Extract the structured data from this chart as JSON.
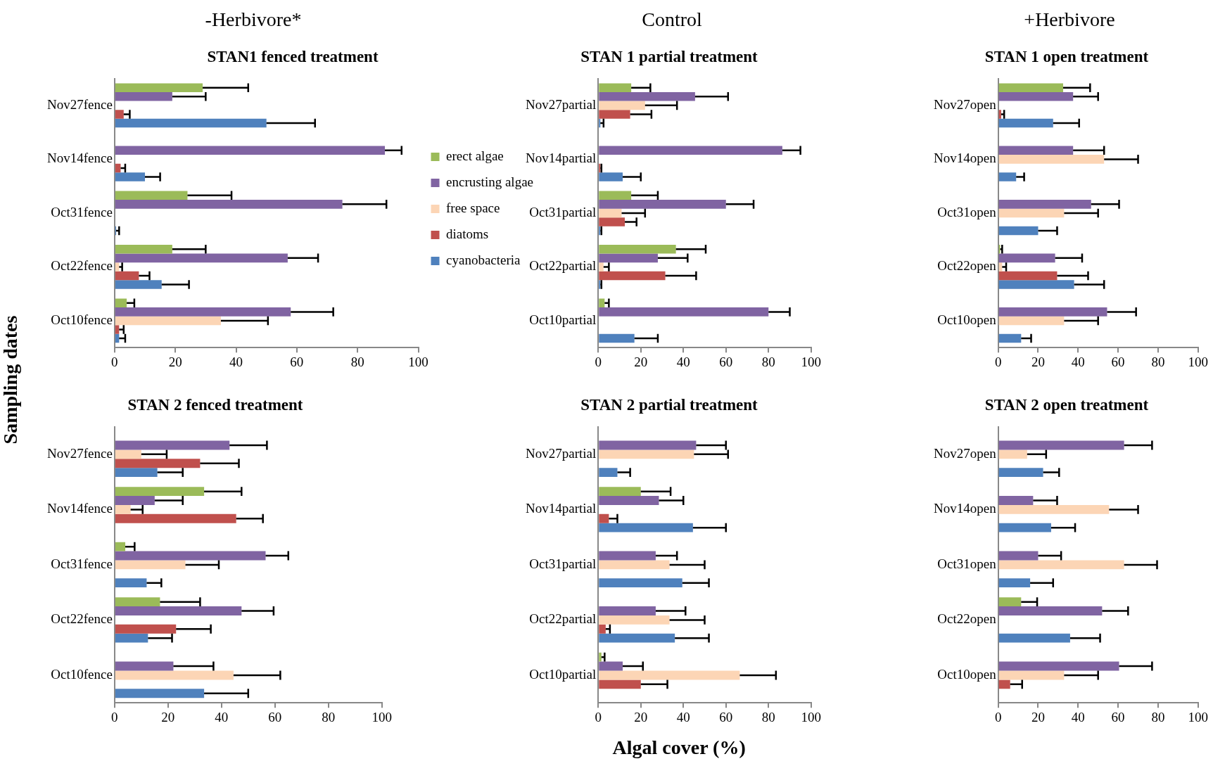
{
  "chart_data": [
    {
      "type": "bar",
      "orientation": "horizontal",
      "subtitle": "-Herbivore*",
      "title": "STAN1 fenced treatment",
      "ylabel": "Sampling dates",
      "legend": "right",
      "grid": false,
      "categories": [
        "Nov27fence",
        "Nov14fence",
        "Oct31fence",
        "Oct22fence",
        "Oct10fence"
      ],
      "xlim": [
        0,
        100
      ],
      "xticks": [
        0,
        20,
        40,
        60,
        80,
        100
      ],
      "series": [
        {
          "name": "erect algae",
          "color": "#9bbb59",
          "values": [
            29,
            null,
            24,
            19,
            4
          ],
          "errors": [
            [
              29,
              44
            ],
            null,
            [
              24,
              38.5
            ],
            [
              19,
              30
            ],
            [
              4,
              6.5
            ]
          ]
        },
        {
          "name": "encrusting algae",
          "color": "#8064a2",
          "values": [
            19,
            89,
            75,
            57,
            58
          ],
          "errors": [
            [
              19,
              30
            ],
            [
              89,
              94.5
            ],
            [
              75,
              89.5
            ],
            [
              57,
              67
            ],
            [
              58,
              72
            ]
          ]
        },
        {
          "name": "free space",
          "color": "#fcd5b5",
          "values": [
            null,
            null,
            null,
            1.5,
            35
          ],
          "errors": [
            null,
            null,
            null,
            [
              1.5,
              2.5
            ],
            [
              35,
              50.5
            ]
          ]
        },
        {
          "name": "diatoms",
          "color": "#c0504d",
          "values": [
            3,
            2,
            null,
            8,
            1.5
          ],
          "errors": [
            [
              3,
              5
            ],
            [
              2,
              3.5
            ],
            null,
            [
              8,
              11.5
            ],
            [
              1.5,
              3
            ]
          ]
        },
        {
          "name": "cyanobacteria",
          "color": "#4f81bd",
          "values": [
            50,
            10,
            0.5,
            15.5,
            1.5
          ],
          "errors": [
            [
              50,
              66
            ],
            [
              10,
              15
            ],
            [
              0.5,
              1.5
            ],
            [
              15.5,
              24.5
            ],
            [
              1.5,
              3.5
            ]
          ]
        }
      ]
    },
    {
      "type": "bar",
      "orientation": "horizontal",
      "subtitle": "Control",
      "title": "STAN 1 partial treatment",
      "legend": false,
      "grid": false,
      "categories": [
        "Nov27partial",
        "Nov14partial",
        "Oct31partial",
        "Oct22partial",
        "Oct10partial"
      ],
      "xlim": [
        0,
        100
      ],
      "xticks": [
        0,
        20,
        40,
        60,
        80,
        100
      ],
      "series": [
        {
          "color": "#9bbb59",
          "values": [
            15.5,
            null,
            15.5,
            36.5,
            3
          ],
          "errors": [
            [
              15.5,
              24.5
            ],
            null,
            [
              15.5,
              28
            ],
            [
              36.5,
              50.5
            ],
            [
              3,
              5
            ]
          ]
        },
        {
          "color": "#8064a2",
          "values": [
            45.5,
            86.5,
            60,
            28,
            80
          ],
          "errors": [
            [
              45.5,
              61
            ],
            [
              86.5,
              95
            ],
            [
              60,
              73
            ],
            [
              28,
              42
            ],
            [
              80,
              90
            ]
          ]
        },
        {
          "color": "#fcd5b5",
          "values": [
            22,
            null,
            11,
            2.5,
            null
          ],
          "errors": [
            [
              22,
              37
            ],
            null,
            [
              11,
              22
            ],
            [
              2.5,
              5
            ],
            null
          ]
        },
        {
          "color": "#c0504d",
          "values": [
            15,
            1,
            12.5,
            31.5,
            null
          ],
          "errors": [
            [
              15,
              25
            ],
            [
              1,
              1.5
            ],
            [
              12.5,
              18
            ],
            [
              31.5,
              46
            ],
            null
          ]
        },
        {
          "color": "#4f81bd",
          "values": [
            1,
            11.5,
            1,
            1,
            17
          ],
          "errors": [
            [
              1,
              2.5
            ],
            [
              11.5,
              20
            ],
            [
              1,
              1.5
            ],
            [
              1,
              1.5
            ],
            [
              17,
              28
            ]
          ]
        }
      ]
    },
    {
      "type": "bar",
      "orientation": "horizontal",
      "subtitle": "+Herbivore",
      "title": "STAN 1 open treatment",
      "legend": false,
      "grid": false,
      "categories": [
        "Nov27open",
        "Nov14open",
        "Oct31open",
        "Oct22open",
        "Oct10open"
      ],
      "xlim": [
        0,
        100
      ],
      "xticks": [
        0,
        20,
        40,
        60,
        80,
        100
      ],
      "series": [
        {
          "color": "#9bbb59",
          "values": [
            32.5,
            null,
            null,
            1,
            null
          ],
          "errors": [
            [
              32.5,
              46
            ],
            null,
            null,
            [
              1,
              2
            ],
            null
          ]
        },
        {
          "color": "#8064a2",
          "values": [
            37.5,
            37.5,
            46.5,
            28.5,
            54.5
          ],
          "errors": [
            [
              37.5,
              50
            ],
            [
              37.5,
              53
            ],
            [
              46.5,
              60.5
            ],
            [
              28.5,
              42
            ],
            [
              54.5,
              69
            ]
          ]
        },
        {
          "color": "#fcd5b5",
          "values": [
            null,
            53,
            33,
            2,
            33
          ],
          "errors": [
            null,
            [
              53,
              70
            ],
            [
              33,
              50
            ],
            [
              2,
              4
            ],
            [
              33,
              50
            ]
          ]
        },
        {
          "color": "#c0504d",
          "values": [
            1.5,
            null,
            null,
            29.5,
            null
          ],
          "errors": [
            [
              1.5,
              3
            ],
            null,
            null,
            [
              29.5,
              45
            ],
            null
          ]
        },
        {
          "color": "#4f81bd",
          "values": [
            27.5,
            9,
            20,
            38,
            11.5
          ],
          "errors": [
            [
              27.5,
              40.5
            ],
            [
              9,
              13
            ],
            [
              20,
              29.5
            ],
            [
              38,
              53
            ],
            [
              11.5,
              16.5
            ]
          ]
        }
      ]
    },
    {
      "type": "bar",
      "orientation": "horizontal",
      "title": "STAN 2 fenced treatment",
      "legend": false,
      "grid": false,
      "categories": [
        "Nov27fence",
        "Nov14fence",
        "Oct31fence",
        "Oct22fence",
        "Oct10fence"
      ],
      "xlim": [
        0,
        100
      ],
      "xticks": [
        0,
        20,
        40,
        60,
        80,
        100
      ],
      "series": [
        {
          "color": "#9bbb59",
          "values": [
            null,
            33.5,
            4,
            17,
            null
          ],
          "errors": [
            null,
            [
              33.5,
              47.5
            ],
            [
              4,
              7.5
            ],
            [
              17,
              32
            ],
            null
          ]
        },
        {
          "color": "#8064a2",
          "values": [
            43,
            15,
            56.5,
            47.5,
            22
          ],
          "errors": [
            [
              43,
              57
            ],
            [
              15,
              25.5
            ],
            [
              56.5,
              65
            ],
            [
              47.5,
              59.5
            ],
            [
              22,
              37
            ]
          ]
        },
        {
          "color": "#fcd5b5",
          "values": [
            10,
            6,
            26.5,
            null,
            44.5
          ],
          "errors": [
            [
              10,
              19.5
            ],
            [
              6,
              10.5
            ],
            [
              26.5,
              39
            ],
            null,
            [
              44.5,
              62
            ]
          ]
        },
        {
          "color": "#c0504d",
          "values": [
            32,
            45.5,
            null,
            23,
            null
          ],
          "errors": [
            [
              32,
              46.5
            ],
            [
              45.5,
              55.5
            ],
            null,
            [
              23,
              36
            ],
            null
          ]
        },
        {
          "color": "#4f81bd",
          "values": [
            16,
            null,
            12,
            12.5,
            33.5
          ],
          "errors": [
            [
              16,
              25.5
            ],
            null,
            [
              12,
              17.5
            ],
            [
              12.5,
              21.5
            ],
            [
              33.5,
              50
            ]
          ]
        }
      ]
    },
    {
      "type": "bar",
      "orientation": "horizontal",
      "title": "STAN 2 partial treatment",
      "xlabel": "Algal cover (%)",
      "legend": false,
      "grid": false,
      "categories": [
        "Nov27partial",
        "Nov14partial",
        "Oct31partial",
        "Oct22partial",
        "Oct10partial"
      ],
      "xlim": [
        0,
        100
      ],
      "xticks": [
        0,
        20,
        40,
        60,
        80,
        100
      ],
      "series": [
        {
          "color": "#9bbb59",
          "values": [
            null,
            20,
            null,
            null,
            1.5
          ],
          "errors": [
            null,
            [
              20,
              34
            ],
            null,
            null,
            [
              1.5,
              3
            ]
          ]
        },
        {
          "color": "#8064a2",
          "values": [
            46,
            28.5,
            27,
            27,
            11.5
          ],
          "errors": [
            [
              46,
              60
            ],
            [
              28.5,
              40
            ],
            [
              27,
              37
            ],
            [
              27,
              41
            ],
            [
              11.5,
              21
            ]
          ]
        },
        {
          "color": "#fcd5b5",
          "values": [
            45,
            null,
            33.5,
            33.5,
            66.5
          ],
          "errors": [
            [
              45,
              61
            ],
            null,
            [
              33.5,
              50
            ],
            [
              33.5,
              50
            ],
            [
              66.5,
              83.5
            ]
          ]
        },
        {
          "color": "#c0504d",
          "values": [
            null,
            5,
            null,
            3.5,
            20
          ],
          "errors": [
            null,
            [
              5,
              9
            ],
            null,
            [
              3.5,
              5.5
            ],
            [
              20,
              32.5
            ]
          ]
        },
        {
          "color": "#4f81bd",
          "values": [
            9,
            44.5,
            39.5,
            36,
            null
          ],
          "errors": [
            [
              9,
              15
            ],
            [
              44.5,
              60
            ],
            [
              39.5,
              52
            ],
            [
              36,
              52
            ],
            null
          ]
        }
      ]
    },
    {
      "type": "bar",
      "orientation": "horizontal",
      "title": "STAN 2 open treatment",
      "legend": false,
      "grid": false,
      "categories": [
        "Nov27open",
        "Nov14open",
        "Oct31open",
        "Oct22open",
        "Oct10open"
      ],
      "xlim": [
        0,
        100
      ],
      "xticks": [
        0,
        20,
        40,
        60,
        80,
        100
      ],
      "series": [
        {
          "color": "#9bbb59",
          "values": [
            null,
            null,
            null,
            11.5,
            null
          ],
          "errors": [
            null,
            null,
            null,
            [
              11.5,
              19.5
            ],
            null
          ]
        },
        {
          "color": "#8064a2",
          "values": [
            63,
            17.5,
            20,
            52,
            60.5
          ],
          "errors": [
            [
              63,
              77
            ],
            [
              17.5,
              29.5
            ],
            [
              20,
              31.5
            ],
            [
              52,
              65
            ],
            [
              60.5,
              77
            ]
          ]
        },
        {
          "color": "#fcd5b5",
          "values": [
            14.5,
            55.5,
            63,
            null,
            33
          ],
          "errors": [
            [
              14.5,
              24
            ],
            [
              55.5,
              70
            ],
            [
              63,
              79.5
            ],
            null,
            [
              33,
              50
            ]
          ]
        },
        {
          "color": "#c0504d",
          "values": [
            null,
            null,
            null,
            null,
            6
          ],
          "errors": [
            null,
            null,
            null,
            null,
            [
              6,
              12
            ]
          ]
        },
        {
          "color": "#4f81bd",
          "values": [
            22.5,
            26.5,
            16,
            36,
            null
          ],
          "errors": [
            [
              22.5,
              30.5
            ],
            [
              26.5,
              38.5
            ],
            [
              16,
              27.5
            ],
            [
              36,
              51
            ],
            null
          ]
        }
      ]
    }
  ]
}
